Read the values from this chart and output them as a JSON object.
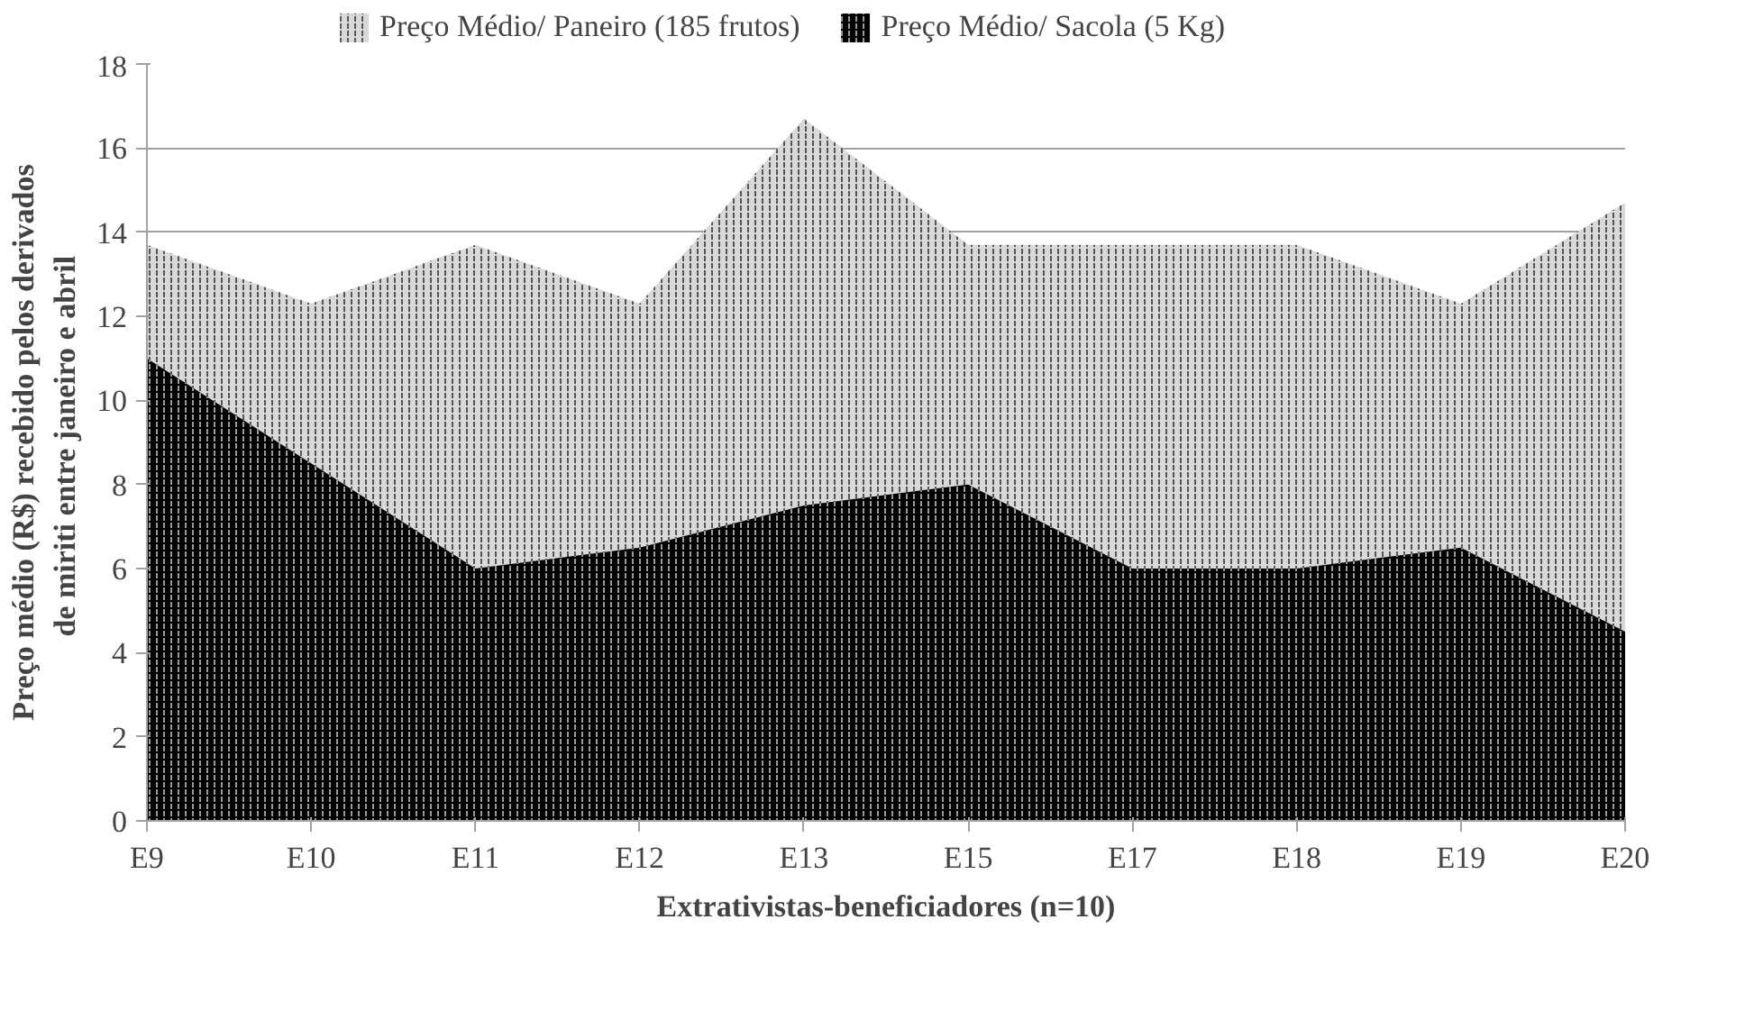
{
  "chart_data": {
    "type": "area",
    "xlabel": "Extrativistas-beneficiadores (n=10)",
    "ylabel": "Preço médio (R$) recebido pelos derivados de miriti  entre janeiro e abril",
    "categories": [
      "E9",
      "E10",
      "E11",
      "E12",
      "E13",
      "E15",
      "E17",
      "E18",
      "E19",
      "E20"
    ],
    "series": [
      {
        "name": "Preço Médio/ Paneiro (185 frutos)",
        "color": "#d9d9d9",
        "values": [
          13.7,
          12.3,
          13.7,
          12.3,
          16.7,
          13.7,
          13.7,
          13.7,
          12.3,
          14.7
        ]
      },
      {
        "name": "Preço Médio/ Sacola (5 Kg)",
        "color": "#000000",
        "values": [
          11,
          8.5,
          6,
          6.5,
          7.5,
          8,
          6,
          6,
          6.5,
          4.5
        ]
      }
    ],
    "ylim": [
      0,
      18
    ],
    "yticks": [
      0,
      2,
      4,
      6,
      8,
      10,
      12,
      14,
      16,
      18
    ],
    "grid": "y",
    "legend": "top"
  }
}
